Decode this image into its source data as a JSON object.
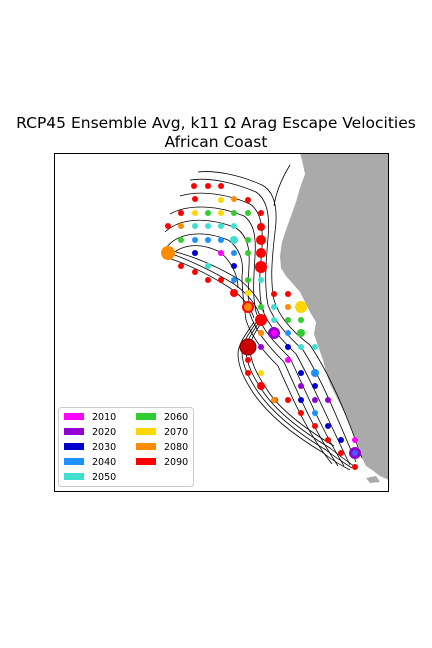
{
  "title_line1": "RCP45 Ensemble Avg, k11 Ω Arag Escape Velocities",
  "title_line2": "African Coast",
  "colors": {
    "land": "#aaaaaa",
    "frame": "#000000"
  },
  "legend": [
    {
      "label": "2010",
      "color": "#ff00ff"
    },
    {
      "label": "2020",
      "color": "#9400d3"
    },
    {
      "label": "2030",
      "color": "#0000cd"
    },
    {
      "label": "2040",
      "color": "#1e90ff"
    },
    {
      "label": "2050",
      "color": "#40e0d0"
    },
    {
      "label": "2060",
      "color": "#32cd32"
    },
    {
      "label": "2070",
      "color": "#ffd700"
    },
    {
      "label": "2080",
      "color": "#ff8c00"
    },
    {
      "label": "2090",
      "color": "#ff0000"
    }
  ]
}
